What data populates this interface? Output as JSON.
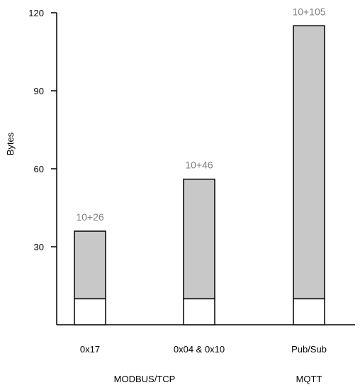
{
  "chart_data": {
    "type": "bar",
    "stacked": true,
    "categories": [
      "0x17",
      "0x04 & 0x10",
      "Pub/Sub"
    ],
    "groups": [
      {
        "label": "MODBUS/TCP",
        "categories": [
          "0x17",
          "0x04 & 0x10"
        ]
      },
      {
        "label": "MQTT",
        "categories": [
          "Pub/Sub"
        ]
      }
    ],
    "series": [
      {
        "values": [
          10,
          10,
          10
        ],
        "color": "#ffffff"
      },
      {
        "values": [
          26,
          46,
          105
        ],
        "color": "#c8c8c8"
      }
    ],
    "data_labels": [
      "10+26",
      "10+46",
      "10+105"
    ],
    "data_label_color": "#808080",
    "ylabel": "Bytes",
    "xlabel": "",
    "ylim": [
      0,
      120
    ],
    "yticks": [
      30,
      60,
      90,
      120
    ],
    "grid": false,
    "legend": "none"
  }
}
